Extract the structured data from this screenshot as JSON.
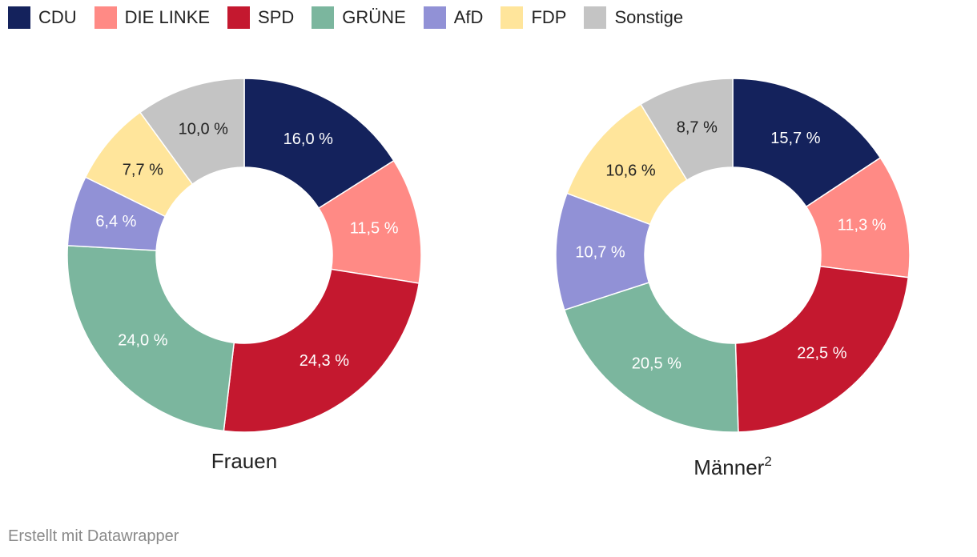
{
  "chart_data": {
    "type": "pie",
    "variant": "donut",
    "categories": [
      "CDU",
      "DIE LINKE",
      "SPD",
      "GRÜNE",
      "AfD",
      "FDP",
      "Sonstige"
    ],
    "colors": [
      "#14225c",
      "#ff8a85",
      "#c4182f",
      "#7bb69e",
      "#9191d6",
      "#ffe59b",
      "#c4c4c4"
    ],
    "label_colors": [
      "#ffffff",
      "#ffffff",
      "#ffffff",
      "#ffffff",
      "#ffffff",
      "#222222",
      "#222222"
    ],
    "legend": "top-left",
    "series": [
      {
        "name": "Frauen",
        "footnote": "",
        "values": [
          16.0,
          11.5,
          24.3,
          24.0,
          6.4,
          7.7,
          10.0
        ],
        "labels": [
          "16,0 %",
          "11,5 %",
          "24,3 %",
          "24,0 %",
          "6,4 %",
          "7,7 %",
          "10,0 %"
        ]
      },
      {
        "name": "Männer",
        "footnote": "2",
        "values": [
          15.7,
          11.3,
          22.5,
          20.5,
          10.7,
          10.6,
          8.7
        ],
        "labels": [
          "15,7 %",
          "11,3 %",
          "22,5 %",
          "20,5 %",
          "10,7 %",
          "10,6 %",
          "8,7 %"
        ]
      }
    ]
  },
  "footer": {
    "credit": "Erstellt mit Datawrapper"
  }
}
